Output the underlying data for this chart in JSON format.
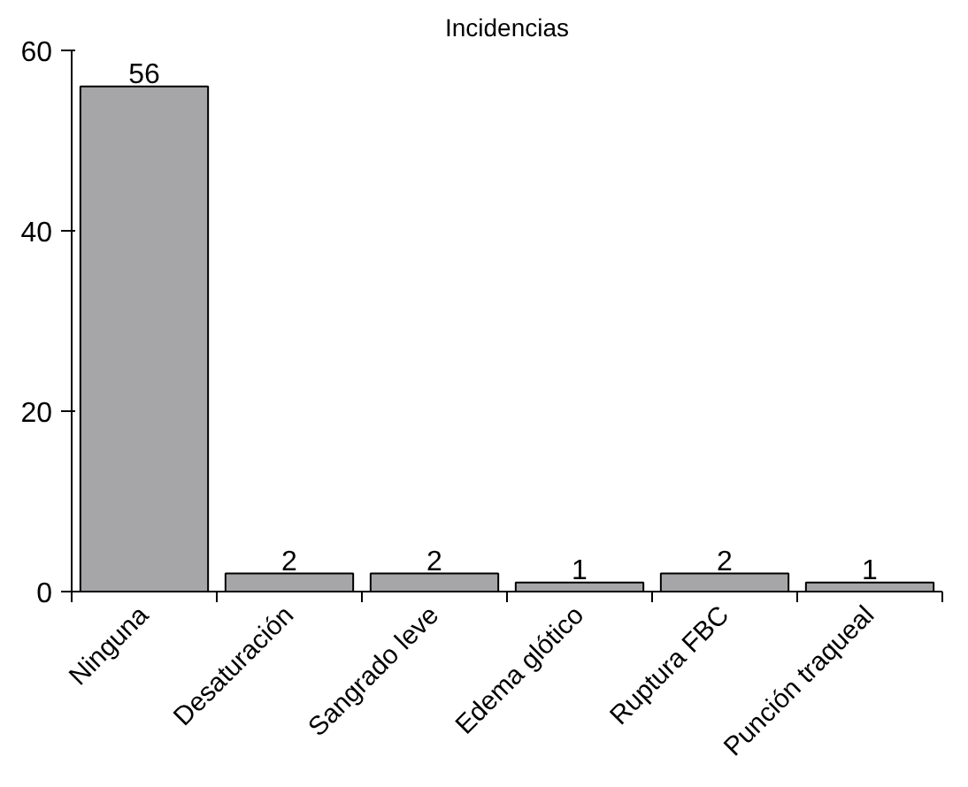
{
  "chart_data": {
    "type": "bar",
    "title": "Incidencias",
    "categories": [
      "Ninguna",
      "Desaturación",
      "Sangrado leve",
      "Edema glótico",
      "Ruptura FBC",
      "Punción traqueal"
    ],
    "values": [
      56,
      2,
      2,
      1,
      2,
      1
    ],
    "color": "#a6a6a8",
    "ylim": [
      0,
      60
    ],
    "yticks": [
      0,
      20,
      40,
      60
    ],
    "data_labels": true,
    "grid": false
  }
}
